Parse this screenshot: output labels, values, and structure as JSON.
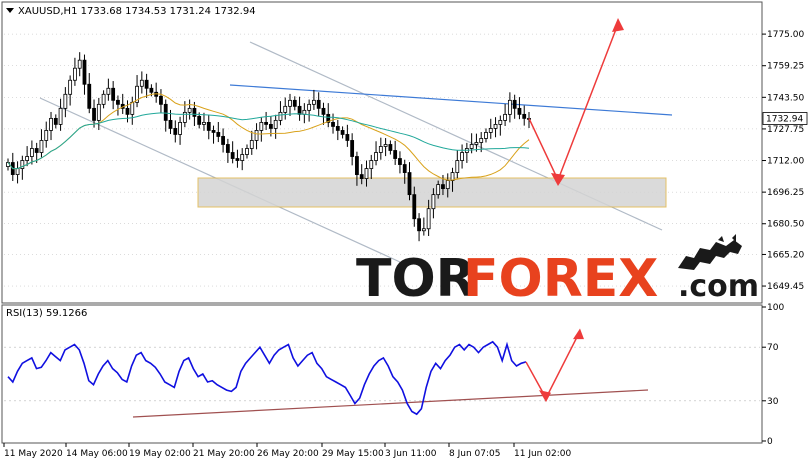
{
  "window": {
    "symbol_header": "XAUUSD,H1  1733.68  1734.53  1731.24  1732.94",
    "rsi_header": "RSI(13) 59.1266",
    "current_price_label": "1732.94"
  },
  "branding": {
    "logo_part1": "TOR",
    "logo_part2": "FOREX",
    "logo_suffix": ".com",
    "logo_icon": "bull-bear-icon"
  },
  "colors": {
    "candle": "#000000",
    "ma_fast": "#d9a21b",
    "ma_slow": "#21a89a",
    "resistance_line": "#3d7ad6",
    "channel_line": "#b0bac6",
    "zone_fill": "#d4d4d4",
    "zone_border": "#e0b64a",
    "forecast_arrow": "#ee3b3b",
    "rsi_line": "#1010e0",
    "rsi_trend": "#a05050",
    "grid": "#b8b8b8",
    "accent": "#e8421e"
  },
  "chart_data": [
    {
      "type": "candlestick",
      "title": "XAUUSD,H1",
      "ylim": [
        1642,
        1790
      ],
      "y_ticks": [
        "1775.00",
        "1759.25",
        "1743.50",
        "1727.75",
        "1712.00",
        "1696.25",
        "1680.50",
        "1665.20",
        "1649.45"
      ],
      "y_tick_values": [
        1775.0,
        1759.25,
        1743.5,
        1727.75,
        1712.0,
        1696.25,
        1680.5,
        1665.2,
        1649.45
      ],
      "x_ticks": [
        "11 May 2020",
        "14 May 06:00",
        "19 May 02:00",
        "21 May 20:00",
        "26 May 20:00",
        "29 May 15:00",
        "3 Jun 11:00",
        "8 Jun 07:05",
        "11 Jun 02:00"
      ],
      "x_tick_index": [
        0,
        14,
        28,
        42,
        56,
        70,
        84,
        98,
        112
      ],
      "last_ohlc": {
        "open": 1733.68,
        "high": 1734.53,
        "low": 1731.24,
        "close": 1732.94
      },
      "series_close": [
        1711,
        1705,
        1708,
        1712,
        1714,
        1718,
        1716,
        1722,
        1727,
        1733,
        1730,
        1738,
        1745,
        1752,
        1758,
        1762,
        1750,
        1738,
        1732,
        1740,
        1745,
        1748,
        1742,
        1740,
        1738,
        1735,
        1741,
        1749,
        1752,
        1748,
        1746,
        1744,
        1740,
        1732,
        1728,
        1725,
        1731,
        1736,
        1738,
        1734,
        1730,
        1731,
        1727,
        1726,
        1724,
        1720,
        1716,
        1713,
        1712,
        1715,
        1718,
        1722,
        1727,
        1731,
        1730,
        1728,
        1732,
        1736,
        1739,
        1742,
        1739,
        1735,
        1737,
        1740,
        1742,
        1738,
        1735,
        1731,
        1729,
        1727,
        1725,
        1722,
        1714,
        1705,
        1703,
        1708,
        1712,
        1716,
        1719,
        1720,
        1717,
        1713,
        1710,
        1706,
        1695,
        1683,
        1677,
        1678,
        1688,
        1695,
        1700,
        1698,
        1702,
        1706,
        1712,
        1716,
        1718,
        1720,
        1721,
        1723,
        1726,
        1728,
        1730,
        1732,
        1735,
        1742,
        1738,
        1735,
        1733,
        1733
      ],
      "series_high_offset": 4,
      "series_low_offset": 4
    },
    {
      "type": "line",
      "title": "RSI(13) 59.1266",
      "ylim": [
        0,
        100
      ],
      "y_ticks": [
        "100",
        "70",
        "30",
        "0"
      ],
      "y_tick_values": [
        100,
        70,
        30,
        0
      ],
      "values": [
        48,
        44,
        52,
        58,
        60,
        62,
        54,
        55,
        60,
        66,
        63,
        60,
        68,
        70,
        72,
        68,
        58,
        45,
        42,
        50,
        56,
        60,
        54,
        51,
        46,
        44,
        56,
        64,
        66,
        60,
        58,
        55,
        50,
        44,
        42,
        40,
        52,
        60,
        62,
        54,
        48,
        50,
        44,
        45,
        42,
        40,
        38,
        37,
        40,
        52,
        58,
        62,
        66,
        70,
        64,
        58,
        64,
        68,
        70,
        72,
        62,
        56,
        60,
        64,
        66,
        58,
        54,
        48,
        46,
        44,
        42,
        40,
        34,
        28,
        32,
        42,
        50,
        56,
        60,
        62,
        56,
        48,
        44,
        38,
        28,
        22,
        20,
        24,
        40,
        52,
        58,
        54,
        60,
        64,
        70,
        72,
        68,
        72,
        70,
        66,
        70,
        72,
        74,
        70,
        60,
        72,
        60,
        56,
        58,
        59
      ],
      "forecast_levels": [
        42,
        74
      ]
    }
  ]
}
